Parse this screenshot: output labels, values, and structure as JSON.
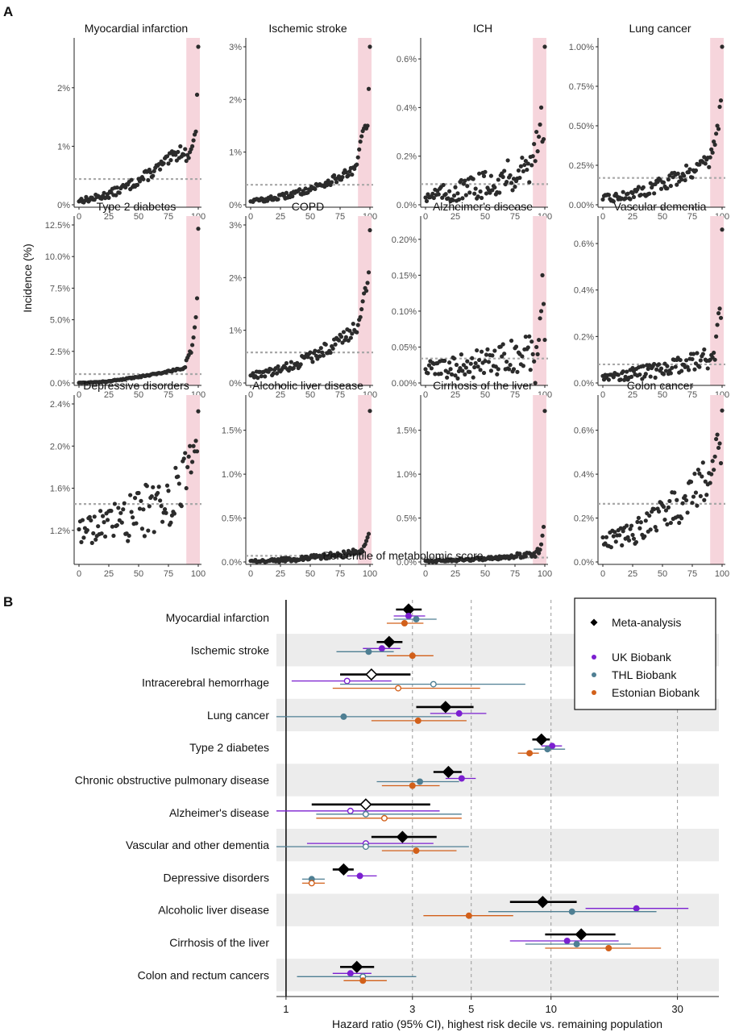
{
  "figure": {
    "panel_a_label": "A",
    "panel_b_label": "B",
    "panel_a_ylabel": "Incidence (%)",
    "panel_a_xlabel": "Percentile of metabolomic score",
    "panel_b_xlabel": "Hazard ratio (95% CI), highest risk decile vs. remaining population"
  },
  "colors": {
    "point": "#2b2b2b",
    "baseline": "#a8a8a8",
    "highlight": "#f6d5dc",
    "meta": "#000000",
    "uk": "#7b1fd0",
    "thl": "#4f7f93",
    "est": "#d2601a",
    "band": "#ececec",
    "gridline": "#9a9a9a"
  },
  "chart_data": [
    {
      "type": "scatter",
      "id": "incidence_panels",
      "xlabel": "Percentile of metabolomic score",
      "ylabel": "Incidence (%)",
      "xlim": [
        0,
        100
      ],
      "xticks": [
        "0",
        "25",
        "50",
        "75",
        "100"
      ],
      "highlight_range": [
        90,
        100
      ],
      "panels": [
        {
          "title": "Myocardial infarction",
          "ymax": 2.7,
          "ytick_values": [
            0,
            1,
            2
          ],
          "ytick_labels": [
            "0%",
            "1%",
            "2%"
          ],
          "baseline": 0.44,
          "base": 0.08,
          "growth": 0.9,
          "noise": 0.08,
          "tail": [
            0.75,
            0.85,
            0.8,
            0.9,
            0.95,
            1.0,
            1.1,
            1.2,
            1.25,
            1.88,
            2.7
          ]
        },
        {
          "title": "Ischemic stroke",
          "ymax": 3.0,
          "ytick_values": [
            0,
            1,
            2,
            3
          ],
          "ytick_labels": [
            "0%",
            "1%",
            "2%",
            "3%"
          ],
          "baseline": 0.38,
          "base": 0.08,
          "growth": 0.6,
          "noise": 0.06,
          "tail": [
            0.9,
            1.05,
            1.2,
            1.3,
            1.4,
            1.45,
            1.5,
            1.45,
            1.5,
            2.2,
            3.0
          ]
        },
        {
          "title": "ICH",
          "ymax": 0.65,
          "ytick_values": [
            0,
            0.2,
            0.4,
            0.6
          ],
          "ytick_labels": [
            "0.0%",
            "0.2%",
            "0.4%",
            "0.6%"
          ],
          "baseline": 0.085,
          "base": 0.04,
          "growth": 0.12,
          "noise": 0.05,
          "tail": [
            0.2,
            0.25,
            0.18,
            0.3,
            0.22,
            0.28,
            0.33,
            0.4,
            0.26,
            0.27,
            0.65
          ]
        },
        {
          "title": "Lung cancer",
          "ymax": 1.0,
          "ytick_values": [
            0,
            0.25,
            0.5,
            0.75,
            1.0
          ],
          "ytick_labels": [
            "0.00%",
            "0.25%",
            "0.50%",
            "0.75%",
            "1.00%"
          ],
          "baseline": 0.17,
          "base": 0.04,
          "growth": 0.25,
          "noise": 0.04,
          "tail": [
            0.3,
            0.35,
            0.33,
            0.4,
            0.38,
            0.45,
            0.5,
            0.48,
            0.62,
            0.66,
            1.0
          ]
        },
        {
          "title": "Type 2 diabetes",
          "ymax": 12.5,
          "ytick_values": [
            0,
            2.5,
            5,
            7.5,
            10,
            12.5
          ],
          "ytick_labels": [
            "0.0%",
            "2.5%",
            "5.0%",
            "7.5%",
            "10.0%",
            "12.5%"
          ],
          "baseline": 0.7,
          "base": 0.02,
          "growth": 1.2,
          "noise": 0.05,
          "tail": [
            1.8,
            2.0,
            2.2,
            2.5,
            2.4,
            3.0,
            3.6,
            4.4,
            5.2,
            6.7,
            12.2
          ]
        },
        {
          "title": "COPD",
          "ymax": 3.0,
          "ytick_values": [
            0,
            1,
            2,
            3
          ],
          "ytick_labels": [
            "0%",
            "1%",
            "2%",
            "3%"
          ],
          "baseline": 0.58,
          "base": 0.15,
          "growth": 0.9,
          "noise": 0.1,
          "tail": [
            1.1,
            1.2,
            1.25,
            1.4,
            1.55,
            1.7,
            1.8,
            1.75,
            1.9,
            2.1,
            2.9
          ]
        },
        {
          "title": "Alzheimer's disease",
          "ymax": 0.22,
          "ytick_values": [
            0,
            0.05,
            0.1,
            0.15,
            0.2
          ],
          "ytick_labels": [
            "0.00%",
            "0.05%",
            "0.10%",
            "0.15%",
            "0.20%"
          ],
          "baseline": 0.034,
          "base": 0.02,
          "growth": 0.02,
          "noise": 0.02,
          "tail": [
            0.04,
            0.03,
            0.0,
            0.05,
            0.04,
            0.06,
            0.09,
            0.1,
            0.15,
            0.11,
            0.06
          ]
        },
        {
          "title": "Vascular dementia",
          "ymax": 0.68,
          "ytick_values": [
            0,
            0.2,
            0.4,
            0.6
          ],
          "ytick_labels": [
            "0.0%",
            "0.2%",
            "0.4%",
            "0.6%"
          ],
          "baseline": 0.08,
          "base": 0.03,
          "growth": 0.08,
          "noise": 0.03,
          "tail": [
            0.1,
            0.12,
            0.11,
            0.13,
            0.1,
            0.2,
            0.25,
            0.3,
            0.32,
            0.28,
            0.66
          ]
        },
        {
          "title": "Depressive disorders",
          "ymax": 2.4,
          "ymin": 0.9,
          "ytick_values": [
            1.2,
            1.6,
            2.0,
            2.4
          ],
          "ytick_labels": [
            "1.2%",
            "1.6%",
            "2.0%",
            "2.4%"
          ],
          "baseline": 1.45,
          "base": 1.2,
          "growth": 0.45,
          "noise": 0.22,
          "tail": [
            1.6,
            1.8,
            1.9,
            2.0,
            1.75,
            1.85,
            2.0,
            1.95,
            2.05,
            1.95,
            2.33
          ]
        },
        {
          "title": "Alcoholic liver disease",
          "ymax": 1.8,
          "ytick_values": [
            0,
            0.5,
            1.0,
            1.5
          ],
          "ytick_labels": [
            "0.0%",
            "0.5%",
            "1.0%",
            "1.5%"
          ],
          "baseline": 0.07,
          "base": 0.01,
          "growth": 0.1,
          "noise": 0.025,
          "tail": [
            0.1,
            0.12,
            0.1,
            0.14,
            0.12,
            0.18,
            0.2,
            0.24,
            0.28,
            0.32,
            1.72
          ]
        },
        {
          "title": "Cirrhosis of the liver",
          "ymax": 1.8,
          "ytick_values": [
            0,
            0.5,
            1.0,
            1.5
          ],
          "ytick_labels": [
            "0.0%",
            "0.5%",
            "1.0%",
            "1.5%"
          ],
          "baseline": 0.05,
          "base": 0.01,
          "growth": 0.08,
          "noise": 0.02,
          "tail": [
            0.08,
            0.1,
            0.06,
            0.12,
            0.15,
            0.1,
            0.14,
            0.2,
            0.3,
            0.4,
            1.72
          ]
        },
        {
          "title": "Colon cancer",
          "ymax": 0.72,
          "ytick_values": [
            0,
            0.2,
            0.4,
            0.6
          ],
          "ytick_labels": [
            "0.0%",
            "0.2%",
            "0.4%",
            "0.6%"
          ],
          "baseline": 0.265,
          "base": 0.1,
          "growth": 0.28,
          "noise": 0.07,
          "tail": [
            0.36,
            0.4,
            0.46,
            0.42,
            0.48,
            0.56,
            0.58,
            0.52,
            0.54,
            0.45,
            0.69
          ]
        }
      ]
    },
    {
      "type": "forest",
      "id": "hazard_ratios",
      "xlabel": "Hazard ratio (95% CI), highest risk decile vs. remaining population",
      "xscale": "log",
      "xlim": [
        0.92,
        43
      ],
      "xtick_values": [
        1,
        3,
        5,
        10,
        30
      ],
      "xtick_labels": [
        "1",
        "3",
        "5",
        "10",
        "30"
      ],
      "legend": {
        "position": "top-right",
        "items": [
          "Meta-analysis",
          "UK Biobank",
          "THL Biobank",
          "Estonian Biobank"
        ]
      },
      "rows": [
        {
          "label": "Myocardial infarction",
          "meta": [
            2.9,
            2.6,
            3.25
          ],
          "uk": [
            2.9,
            2.55,
            3.35
          ],
          "thl": [
            3.1,
            2.55,
            3.7
          ],
          "est": [
            2.8,
            2.4,
            3.3
          ],
          "open": []
        },
        {
          "label": "Ischemic stroke",
          "meta": [
            2.45,
            2.2,
            2.75
          ],
          "uk": [
            2.3,
            1.95,
            2.7
          ],
          "thl": [
            2.05,
            1.55,
            2.55
          ],
          "est": [
            3.0,
            2.4,
            3.6
          ],
          "open": []
        },
        {
          "label": "Intracerebral hemorrhage",
          "meta": [
            2.1,
            1.6,
            2.95
          ],
          "uk": [
            1.7,
            1.05,
            2.5
          ],
          "thl": [
            3.6,
            1.6,
            8.0
          ],
          "est": [
            2.65,
            1.5,
            5.4
          ],
          "open": [
            "meta",
            "uk",
            "thl",
            "est"
          ]
        },
        {
          "label": "Lung cancer",
          "meta": [
            4.0,
            3.1,
            5.1
          ],
          "uk": [
            4.5,
            3.5,
            5.7
          ],
          "thl": [
            1.65,
            0.92,
            4.2
          ],
          "est": [
            3.15,
            2.1,
            4.8
          ],
          "open": []
        },
        {
          "label": "Type 2 diabetes",
          "meta": [
            9.2,
            8.5,
            9.9
          ],
          "uk": [
            10.1,
            9.2,
            11.0
          ],
          "thl": [
            9.7,
            8.6,
            11.3
          ],
          "est": [
            8.3,
            7.5,
            9.0
          ],
          "open": []
        },
        {
          "label": "Chronic obstructive pulmonary disease",
          "meta": [
            4.1,
            3.6,
            4.6
          ],
          "uk": [
            4.6,
            4.0,
            5.2
          ],
          "thl": [
            3.2,
            2.2,
            4.5
          ],
          "est": [
            3.0,
            2.3,
            3.8
          ],
          "open": []
        },
        {
          "label": "Alzheimer's disease",
          "meta": [
            2.0,
            1.25,
            3.5
          ],
          "uk": [
            1.75,
            0.92,
            3.8
          ],
          "thl": [
            2.0,
            1.3,
            4.6
          ],
          "est": [
            2.35,
            1.3,
            4.6
          ],
          "open": [
            "meta",
            "uk",
            "thl",
            "est"
          ]
        },
        {
          "label": "Vascular and other dementia",
          "meta": [
            2.75,
            2.1,
            3.7
          ],
          "uk": [
            2.0,
            1.2,
            3.6
          ],
          "thl": [
            2.0,
            0.92,
            4.9
          ],
          "est": [
            3.1,
            2.3,
            4.4
          ],
          "open": [
            "uk",
            "thl"
          ]
        },
        {
          "label": "Depressive disorders",
          "meta": [
            1.65,
            1.5,
            1.8
          ],
          "uk": [
            1.9,
            1.7,
            2.2
          ],
          "thl": [
            1.25,
            1.15,
            1.4
          ],
          "est": [
            1.25,
            1.15,
            1.4
          ],
          "open": [
            "est"
          ]
        },
        {
          "label": "Alcoholic liver disease",
          "meta": [
            9.3,
            7.0,
            12.5
          ],
          "uk": [
            21.0,
            13.5,
            33.0
          ],
          "thl": [
            12.0,
            5.8,
            25.0
          ],
          "est": [
            4.9,
            3.3,
            7.2
          ],
          "open": []
        },
        {
          "label": "Cirrhosis of the liver",
          "meta": [
            13.0,
            9.5,
            17.5
          ],
          "uk": [
            11.5,
            7.0,
            18.0
          ],
          "thl": [
            12.5,
            8.0,
            20.0
          ],
          "est": [
            16.5,
            9.5,
            26.0
          ],
          "open": []
        },
        {
          "label": "Colon and rectum cancers",
          "meta": [
            1.85,
            1.6,
            2.15
          ],
          "uk": [
            1.75,
            1.5,
            2.1
          ],
          "thl": [
            1.95,
            1.1,
            3.1
          ],
          "est": [
            1.95,
            1.65,
            2.4
          ],
          "open": [
            "thl"
          ]
        }
      ]
    }
  ]
}
